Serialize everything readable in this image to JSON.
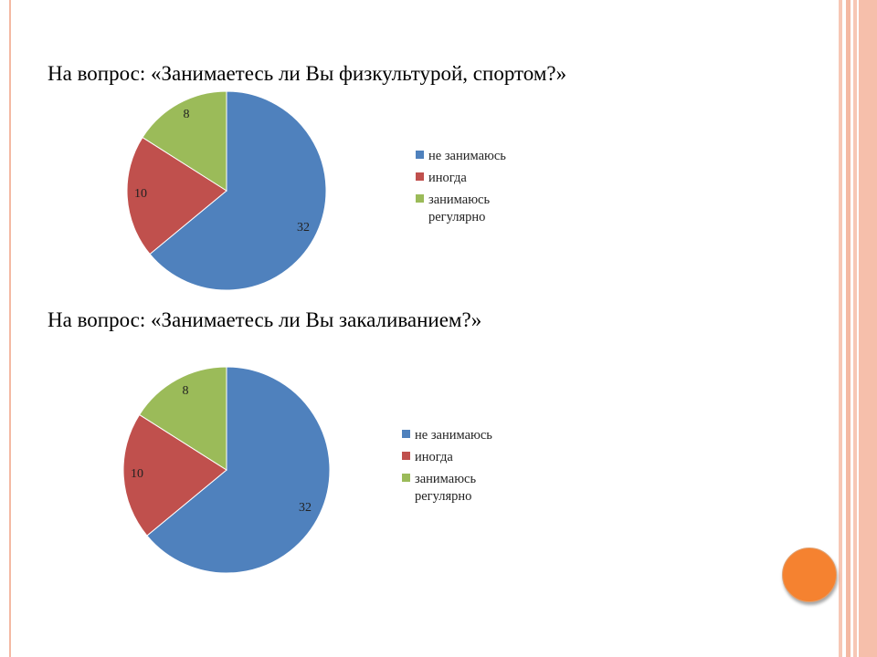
{
  "slide": {
    "accent_color": "#f4b9a3",
    "button_color": "#f58230"
  },
  "questions": [
    {
      "title": "На вопрос: «Занимаетесь ли Вы физкультурой, спортом?»"
    },
    {
      "title": "На вопрос: «Занимаетесь ли Вы закаливанием?»"
    }
  ],
  "chart_data": [
    {
      "type": "pie",
      "categories": [
        "не занимаюсь",
        "иногда",
        "занимаюсь регулярно"
      ],
      "values": [
        32,
        10,
        8
      ],
      "colors": [
        "#4f81bd",
        "#c0504d",
        "#9bbb59"
      ],
      "legend": "right",
      "data_labels": true
    },
    {
      "type": "pie",
      "categories": [
        "не занимаюсь",
        "иногда",
        "занимаюсь регулярно"
      ],
      "values": [
        32,
        10,
        8
      ],
      "colors": [
        "#4f81bd",
        "#c0504d",
        "#9bbb59"
      ],
      "legend": "right",
      "data_labels": true
    }
  ]
}
